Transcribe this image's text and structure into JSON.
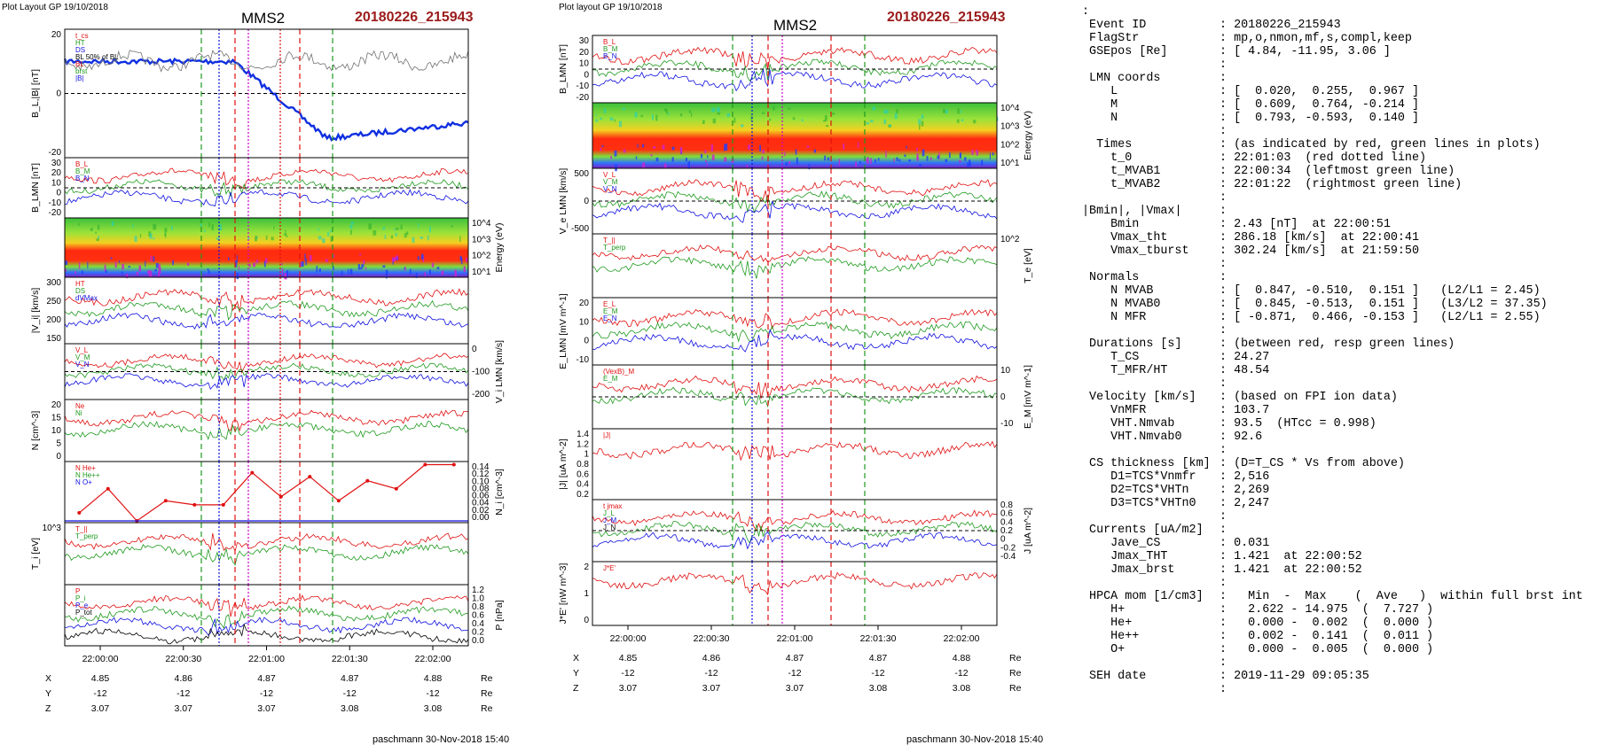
{
  "left_plot": {
    "header": "Plot Layout GP 19/10/2018",
    "spacecraft": "MMS2",
    "event": "20180226_215943",
    "footer": "paschmann 30-Nov-2018 15:40",
    "time_ticks": [
      "22:00:00",
      "22:00:30",
      "22:01:00",
      "22:01:30",
      "22:02:00"
    ],
    "ephem": {
      "X": [
        "4.85",
        "4.86",
        "4.87",
        "4.87",
        "4.88"
      ],
      "Y": [
        "-12",
        "-12",
        "-12",
        "-12",
        "-12"
      ],
      "Z": [
        "3.07",
        "3.07",
        "3.07",
        "3.08",
        "3.08"
      ],
      "unit": "Re"
    },
    "panels": [
      {
        "id": "BL",
        "ylabel": "B_L,|B| [nT]",
        "ticks": [
          "20",
          "0",
          "-20"
        ],
        "legend": [
          "t_cs",
          "HT",
          "DS",
          "BL 50% of BL",
          "BL",
          "brst",
          "|B|"
        ]
      },
      {
        "id": "BLMN",
        "ylabel": "B_LMN [nT]",
        "ticks": [
          "30",
          "20",
          "10",
          "0",
          "-10",
          "-20"
        ],
        "legend": [
          "B_L",
          "B_M",
          "B_N"
        ]
      },
      {
        "id": "Espec",
        "ylabel": "Energy (eV)",
        "ticks": [
          "10^4",
          "10^3",
          "10^2",
          "10^1"
        ]
      },
      {
        "id": "Vi",
        "ylabel": "|V_i| [km/s]",
        "ticks": [
          "300",
          "250",
          "200",
          "150"
        ],
        "legend": [
          "HT",
          "DS",
          "dVMax"
        ]
      },
      {
        "id": "ViLMN",
        "ylabel": "V_i LMN [km/s]",
        "ticks": [
          "0",
          "-100",
          "-200"
        ],
        "legend": [
          "V_L",
          "V_M",
          "V_N"
        ]
      },
      {
        "id": "N",
        "ylabel": "N [cm^-3]",
        "ticks": [
          "20",
          "15",
          "10",
          "5",
          "0"
        ],
        "legend": [
          "Ne",
          "Ni"
        ]
      },
      {
        "id": "Nhpca",
        "ylabel": "N_i [cm^-3]",
        "ticks": [
          "0.14",
          "0.12",
          "0.10",
          "0.08",
          "0.06",
          "0.04",
          "0.02",
          "0.00"
        ],
        "legend": [
          "N He+",
          "N He++",
          "N O+"
        ]
      },
      {
        "id": "Ti",
        "ylabel": "T_i [eV]",
        "ticks": [
          "10^3"
        ],
        "legend": [
          "T_||",
          "T_perp"
        ]
      },
      {
        "id": "P",
        "ylabel": "P [nPa]",
        "ticks": [
          "1.2",
          "1.0",
          "0.8",
          "0.6",
          "0.4",
          "0.2",
          "0.0"
        ],
        "legend": [
          "P",
          "P_i",
          "P_e",
          "P_tot"
        ]
      }
    ]
  },
  "mid_plot": {
    "header": "Plot layout GP 19/10/2018",
    "spacecraft": "MMS2",
    "event": "20180226_215943",
    "footer": "paschmann 30-Nov-2018 15:40",
    "time_ticks": [
      "22:00:00",
      "22:00:30",
      "22:01:00",
      "22:01:30",
      "22:02:00"
    ],
    "ephem": {
      "X": [
        "4.85",
        "4.86",
        "4.87",
        "4.87",
        "4.88"
      ],
      "Y": [
        "-12",
        "-12",
        "-12",
        "-12",
        "-12"
      ],
      "Z": [
        "3.07",
        "3.07",
        "3.07",
        "3.08",
        "3.08"
      ],
      "unit": "Re"
    },
    "panels": [
      {
        "id": "BLMN",
        "ylabel": "B_LMN [nT]",
        "ticks": [
          "30",
          "20",
          "10",
          "0",
          "-10",
          "-20"
        ],
        "legend": [
          "B_L",
          "B_M",
          "B_N"
        ]
      },
      {
        "id": "Espec",
        "ylabel": "Energy (eV)",
        "ticks": [
          "10^4",
          "10^3",
          "10^2",
          "10^1"
        ]
      },
      {
        "id": "VeLMN",
        "ylabel": "V_e LMN [km/s]",
        "ticks": [
          "500",
          "0",
          "-500"
        ],
        "legend": [
          "V_L",
          "V_M",
          "V_N"
        ]
      },
      {
        "id": "Te",
        "ylabel": "T_e [eV]",
        "ticks": [
          "10^2"
        ],
        "legend": [
          "T_||",
          "T_perp"
        ]
      },
      {
        "id": "ELMN",
        "ylabel": "E_LMN [mV m^-1]",
        "ticks": [
          "20",
          "10",
          "0",
          "-10"
        ],
        "legend": [
          "E_L",
          "E_M",
          "E_N"
        ]
      },
      {
        "id": "EM",
        "ylabel": "E_M [mV m^-1]",
        "ticks": [
          "10",
          "0",
          "-10"
        ],
        "legend": [
          "(VexB)_M",
          "E_M"
        ]
      },
      {
        "id": "J",
        "ylabel": "|J| [uA m^-2]",
        "ticks": [
          "1.4",
          "1.2",
          "1",
          "0.8",
          "0.6",
          "0.4",
          "0.2"
        ],
        "legend": [
          "|J|"
        ]
      },
      {
        "id": "JLMN",
        "ylabel": "J [uA m^-2]",
        "ticks": [
          "0.8",
          "0.6",
          "0.4",
          "0.2",
          "0",
          "-0.2",
          "-0.4"
        ],
        "legend": [
          "t jmax",
          "J_L",
          "J_M",
          "J_N"
        ]
      },
      {
        "id": "JE",
        "ylabel": "J*E' [nW m^-3]",
        "ticks": [
          "2",
          "1",
          "0"
        ],
        "legend": [
          "J*E'"
        ]
      }
    ]
  },
  "summary": [
    {
      "k": ":",
      "v": ""
    },
    {
      "k": " Event ID",
      "v": ": 20180226_215943"
    },
    {
      "k": " FlagStr",
      "v": ": mp,o,nmon,mf,s,compl,keep"
    },
    {
      "k": " GSEpos [Re]",
      "v": ": [ 4.84, -11.95, 3.06 ]"
    },
    {
      "k": "",
      "v": ":"
    },
    {
      "k": " LMN coords",
      "v": ":"
    },
    {
      "k": "    L",
      "v": ": [  0.020,  0.255,  0.967 ]"
    },
    {
      "k": "    M",
      "v": ": [  0.609,  0.764, -0.214 ]"
    },
    {
      "k": "    N",
      "v": ": [  0.793, -0.593,  0.140 ]"
    },
    {
      "k": "",
      "v": ":"
    },
    {
      "k": "  Times",
      "v": ": (as indicated by red, green lines in plots)"
    },
    {
      "k": "    t_0",
      "v": ": 22:01:03  (red dotted line)"
    },
    {
      "k": "    t_MVAB1",
      "v": ": 22:00:34  (leftmost green line)"
    },
    {
      "k": "    t_MVAB2",
      "v": ": 22:01:22  (rightmost green line)"
    },
    {
      "k": "",
      "v": ":"
    },
    {
      "k": "|Bmin|, |Vmax|",
      "v": ":"
    },
    {
      "k": "    Bmin",
      "v": ": 2.43 [nT]  at 22:00:51"
    },
    {
      "k": "    Vmax_tht",
      "v": ": 286.18 [km/s]  at 22:00:41"
    },
    {
      "k": "    Vmax_tburst",
      "v": ": 302.24 [km/s]  at 21:59:50"
    },
    {
      "k": "",
      "v": ":"
    },
    {
      "k": " Normals",
      "v": ":"
    },
    {
      "k": "    N MVAB",
      "v": ": [  0.847, -0.510,  0.151 ]   (L2/L1 = 2.45)"
    },
    {
      "k": "    N MVAB0",
      "v": ": [  0.845, -0.513,  0.151 ]   (L3/L2 = 37.35)"
    },
    {
      "k": "    N MFR",
      "v": ": [ -0.871,  0.466, -0.153 ]   (L2/L1 = 2.55)"
    },
    {
      "k": "",
      "v": ":"
    },
    {
      "k": " Durations [s]",
      "v": ": (between red, resp green lines)"
    },
    {
      "k": "    T_CS",
      "v": ": 24.27"
    },
    {
      "k": "    T_MFR/HT",
      "v": ": 48.54"
    },
    {
      "k": "",
      "v": ":"
    },
    {
      "k": " Velocity [km/s]",
      "v": ": (based on FPI ion data)"
    },
    {
      "k": "    VnMFR",
      "v": ": 103.7"
    },
    {
      "k": "    VHT.Nmvab",
      "v": ": 93.5  (HTcc = 0.998)"
    },
    {
      "k": "    VHT.Nmvab0",
      "v": ": 92.6"
    },
    {
      "k": "",
      "v": ":"
    },
    {
      "k": " CS thickness [km]",
      "v": ": (D=T_CS * Vs from above)"
    },
    {
      "k": "    D1=TCS*Vnmfr",
      "v": ": 2,516"
    },
    {
      "k": "    D2=TCS*VHTn",
      "v": ": 2,269"
    },
    {
      "k": "    D3=TCS*VHTn0",
      "v": ": 2,247"
    },
    {
      "k": "",
      "v": ":"
    },
    {
      "k": " Currents [uA/m2]",
      "v": ":"
    },
    {
      "k": "    Jave_CS",
      "v": ": 0.031"
    },
    {
      "k": "    Jmax_THT",
      "v": ": 1.421  at 22:00:52"
    },
    {
      "k": "    Jmax_brst",
      "v": ": 1.421  at 22:00:52"
    },
    {
      "k": "",
      "v": ":"
    },
    {
      "k": " HPCA mom [1/cm3]",
      "v": ":   Min  -  Max    (  Ave   )  within full brst int"
    },
    {
      "k": "    H+",
      "v": ":   2.622 - 14.975  (  7.727 )"
    },
    {
      "k": "    He+",
      "v": ":   0.000 -  0.002  (  0.000 )"
    },
    {
      "k": "    He++",
      "v": ":   0.002 -  0.141  (  0.011 )"
    },
    {
      "k": "    O+",
      "v": ":   0.000 -  0.005  (  0.000 )"
    },
    {
      "k": "",
      "v": ":"
    },
    {
      "k": " SEH date",
      "v": ": 2019-11-29 09:05:35"
    },
    {
      "k": "",
      "v": ":"
    }
  ],
  "chart_data": [
    {
      "type": "line",
      "title": "MMS2 20180226_215943",
      "x_ticks": [
        "22:00:00",
        "22:00:30",
        "22:01:00",
        "22:01:30",
        "22:02:00"
      ],
      "panels": [
        "B_L,|B| [nT]",
        "B_LMN [nT]",
        "Energy (eV)",
        "|V_i| [km/s]",
        "V_i LMN [km/s]",
        "N [cm^-3]",
        "N_i [cm^-3]",
        "T_i [eV]",
        "P [nPa]"
      ],
      "series": [
        {
          "name": "N He++",
          "x": [
            "21:59:50",
            "22:00:00",
            "22:00:10",
            "22:00:20",
            "22:00:30",
            "22:00:40",
            "22:00:50",
            "22:01:00",
            "22:01:10",
            "22:01:20",
            "22:01:30",
            "22:01:40",
            "22:01:50",
            "22:02:00"
          ],
          "values": [
            0.02,
            0.08,
            0.0,
            0.05,
            0.04,
            0.04,
            0.12,
            0.06,
            0.11,
            0.05,
            0.1,
            0.08,
            0.14,
            0.14
          ]
        }
      ]
    },
    {
      "type": "line",
      "title": "MMS2 20180226_215943",
      "x_ticks": [
        "22:00:00",
        "22:00:30",
        "22:01:00",
        "22:01:30",
        "22:02:00"
      ],
      "panels": [
        "B_LMN [nT]",
        "Energy (eV)",
        "V_e LMN [km/s]",
        "T_e [eV]",
        "E_LMN [mV m^-1]",
        "E_M [mV m^-1]",
        "|J| [uA m^-2]",
        "J [uA m^-2]",
        "J*E' [nW m^-3]"
      ],
      "series": [
        {
          "name": "|J|",
          "x": [
            "22:00:52"
          ],
          "values": [
            1.421
          ]
        }
      ]
    }
  ]
}
